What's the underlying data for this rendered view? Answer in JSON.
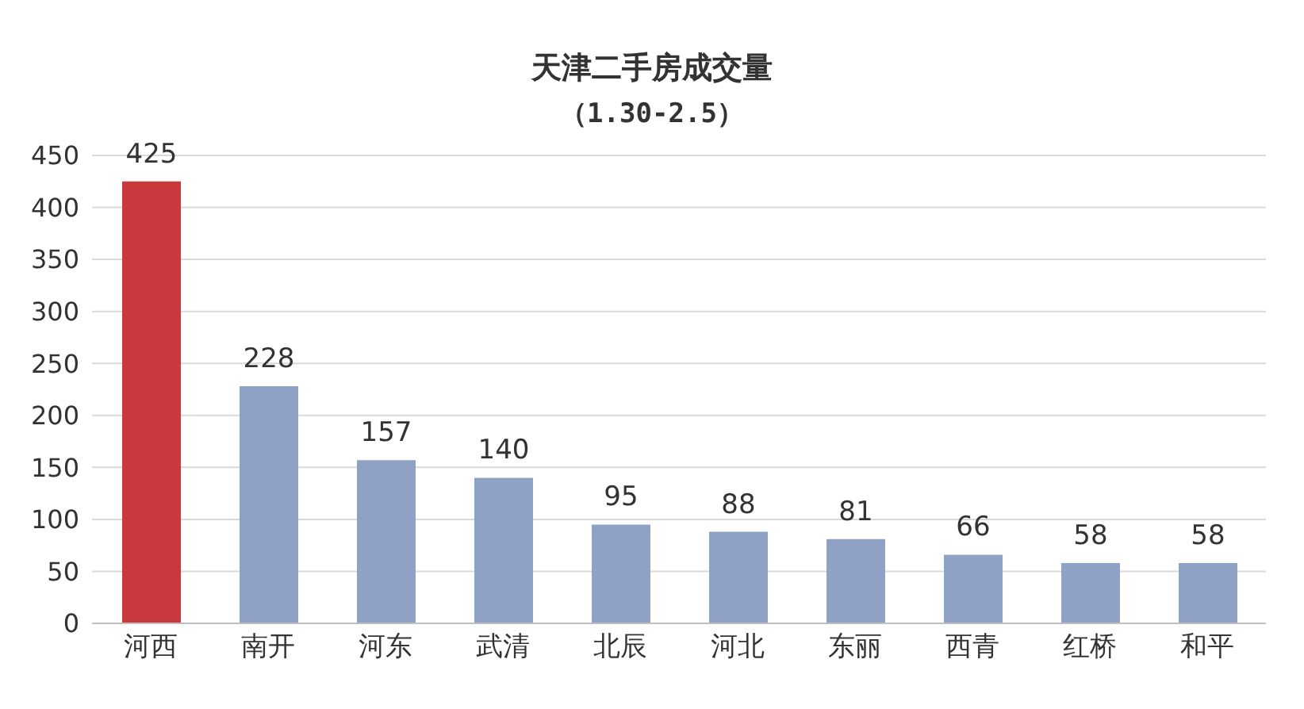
{
  "chart_data": {
    "type": "bar",
    "title": "天津二手房成交量",
    "subtitle": "（1.30-2.5）",
    "categories": [
      "河西",
      "南开",
      "河东",
      "武清",
      "北辰",
      "河北",
      "东丽",
      "西青",
      "红桥",
      "和平"
    ],
    "values": [
      425,
      228,
      157,
      140,
      95,
      88,
      81,
      66,
      58,
      58
    ],
    "colors": [
      "#c9383c",
      "#8fa2c6",
      "#8fa2c6",
      "#8fa2c6",
      "#8fa2c6",
      "#8fa2c6",
      "#8fa2c6",
      "#8fa2c6",
      "#8fa2c6",
      "#8fa2c6"
    ],
    "ylim": [
      0,
      450
    ],
    "yticks": [
      0,
      50,
      100,
      150,
      200,
      250,
      300,
      350,
      400,
      450
    ],
    "grid": "y",
    "data_labels": true
  }
}
